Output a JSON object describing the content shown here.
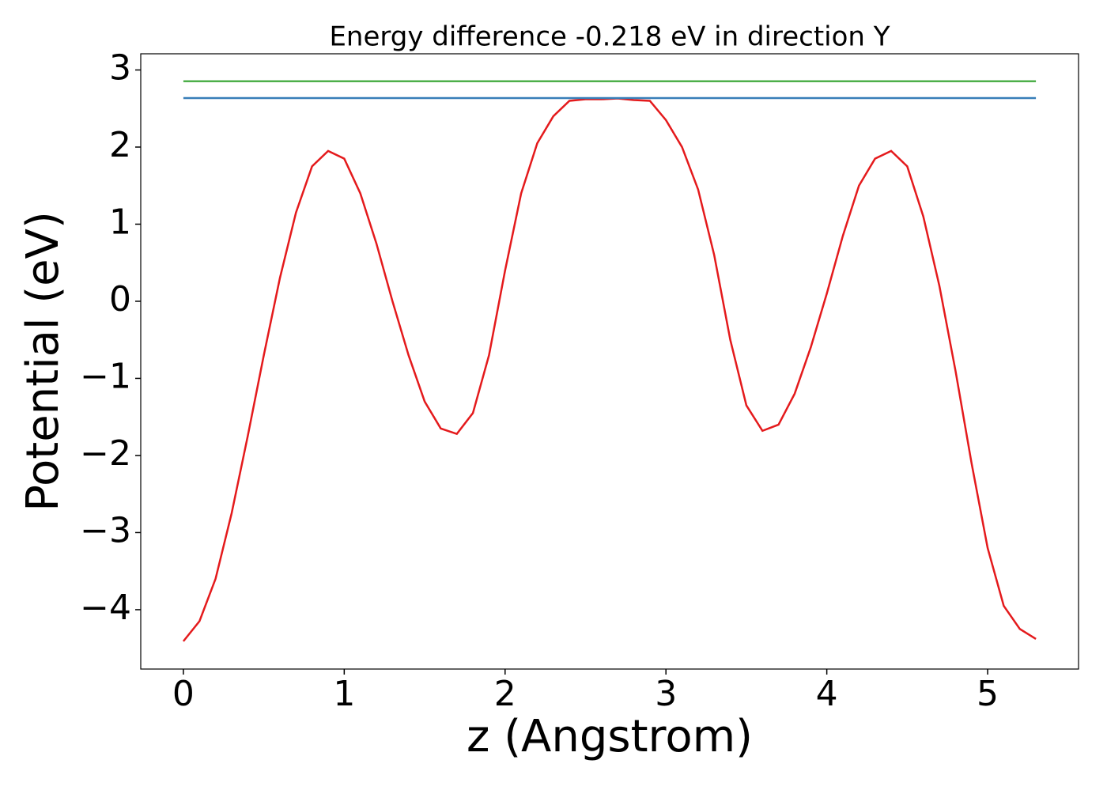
{
  "chart_data": {
    "type": "line",
    "title": "Energy difference -0.218 eV in direction Y",
    "xlabel": "z (Angstrom)",
    "ylabel": "Potential (eV)",
    "x": [
      0.0,
      0.1,
      0.2,
      0.3,
      0.4,
      0.5,
      0.6,
      0.7,
      0.8,
      0.9,
      1.0,
      1.1,
      1.2,
      1.3,
      1.4,
      1.5,
      1.6,
      1.7,
      1.8,
      1.9,
      2.0,
      2.1,
      2.2,
      2.3,
      2.4,
      2.5,
      2.6,
      2.7,
      2.8,
      2.9,
      3.0,
      3.1,
      3.2,
      3.3,
      3.4,
      3.5,
      3.6,
      3.7,
      3.8,
      3.9,
      4.0,
      4.1,
      4.2,
      4.3,
      4.4,
      4.5,
      4.6,
      4.7,
      4.8,
      4.9,
      5.0,
      5.1,
      5.2,
      5.3
    ],
    "series": [
      {
        "color": "#e41a1c",
        "values": [
          -4.41,
          -4.15,
          -3.6,
          -2.75,
          -1.75,
          -0.7,
          0.3,
          1.15,
          1.75,
          1.95,
          1.85,
          1.4,
          0.75,
          0.0,
          -0.7,
          -1.3,
          -1.65,
          -1.72,
          -1.45,
          -0.7,
          0.4,
          1.4,
          2.05,
          2.4,
          2.6,
          2.62,
          2.62,
          2.63,
          2.61,
          2.6,
          2.35,
          2.0,
          1.45,
          0.6,
          -0.5,
          -1.35,
          -1.68,
          -1.6,
          -1.2,
          -0.6,
          0.1,
          0.85,
          1.5,
          1.85,
          1.95,
          1.75,
          1.1,
          0.2,
          -0.9,
          -2.1,
          -3.2,
          -3.95,
          -4.25,
          -4.38
        ]
      },
      {
        "color": "#377eb8",
        "values": [
          2.636,
          2.636,
          2.636,
          2.636,
          2.636,
          2.636,
          2.636,
          2.636,
          2.636,
          2.636,
          2.636,
          2.636,
          2.636,
          2.636,
          2.636,
          2.636,
          2.636,
          2.636,
          2.636,
          2.636,
          2.636,
          2.636,
          2.636,
          2.636,
          2.636,
          2.636,
          2.636,
          2.636,
          2.636,
          2.636,
          2.636,
          2.636,
          2.636,
          2.636,
          2.636,
          2.636,
          2.636,
          2.636,
          2.636,
          2.636,
          2.636,
          2.636,
          2.636,
          2.636,
          2.636,
          2.636,
          2.636,
          2.636,
          2.636,
          2.636,
          2.636,
          2.636,
          2.636,
          2.636
        ]
      },
      {
        "color": "#4daf4a",
        "values": [
          2.854,
          2.854,
          2.854,
          2.854,
          2.854,
          2.854,
          2.854,
          2.854,
          2.854,
          2.854,
          2.854,
          2.854,
          2.854,
          2.854,
          2.854,
          2.854,
          2.854,
          2.854,
          2.854,
          2.854,
          2.854,
          2.854,
          2.854,
          2.854,
          2.854,
          2.854,
          2.854,
          2.854,
          2.854,
          2.854,
          2.854,
          2.854,
          2.854,
          2.854,
          2.854,
          2.854,
          2.854,
          2.854,
          2.854,
          2.854,
          2.854,
          2.854,
          2.854,
          2.854,
          2.854,
          2.854,
          2.854,
          2.854,
          2.854,
          2.854,
          2.854,
          2.854,
          2.854,
          2.854
        ]
      }
    ],
    "xlim": [
      -0.265,
      5.565
    ],
    "xticks": [
      0,
      1,
      2,
      3,
      4,
      5
    ],
    "ylim": [
      -4.77,
      3.21
    ],
    "yticks": [
      {
        "value": -4,
        "label": "−4"
      },
      {
        "value": -3,
        "label": "−3"
      },
      {
        "value": -2,
        "label": "−2"
      },
      {
        "value": -1,
        "label": "−1"
      },
      0,
      1,
      2,
      3
    ],
    "grid": false
  }
}
